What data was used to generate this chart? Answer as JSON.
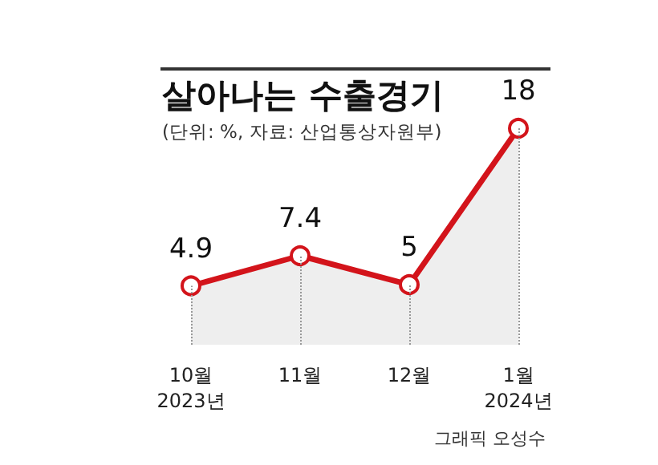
{
  "chart_data": {
    "type": "area",
    "title": "살아나는 수출경기",
    "subtitle": "(단위: %, 자료: 산업통상자원부)",
    "categories": [
      "10월\n2023년",
      "11월",
      "12월",
      "1월\n2024년"
    ],
    "series": [
      {
        "color": "#d3141b",
        "values": [
          4.9,
          7.4,
          5,
          18
        ]
      }
    ],
    "data_labels": true,
    "marker": "circle",
    "grid": "x",
    "annotations": [
      "그래픽 오성수"
    ]
  }
}
